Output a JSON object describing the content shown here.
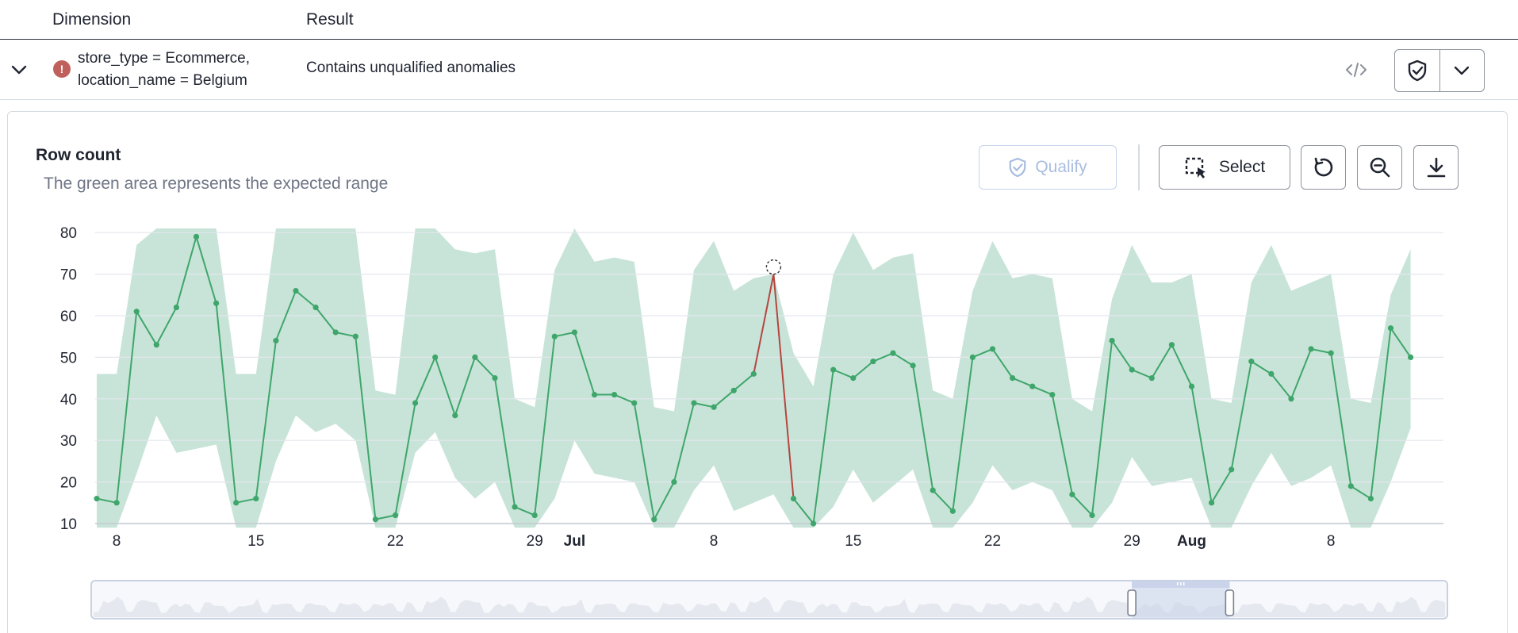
{
  "table": {
    "columns": {
      "dimension": "Dimension",
      "result": "Result"
    },
    "row": {
      "dimension_line1": "store_type = Ecommerce,",
      "dimension_line2": "location_name = Belgium",
      "result": "Contains unqualified anomalies",
      "status_icon": "error-icon"
    }
  },
  "panel": {
    "title": "Row count",
    "subtitle": "The green area represents the expected range",
    "qualify_label": "Qualify",
    "select_label": "Select"
  },
  "colors": {
    "band": "#c8e4d8",
    "line": "#3fa66b",
    "anomaly": "#b5453f",
    "brush_selection": "#c9d3ea"
  },
  "chart_data": {
    "type": "line",
    "title": "Row count",
    "ylim": [
      10,
      80
    ],
    "y_ticks": [
      10,
      20,
      30,
      40,
      50,
      60,
      70,
      80
    ],
    "x_start_date": "2024-06-07",
    "x_tick_labels": [
      {
        "label": "8",
        "day": 1,
        "bold": false
      },
      {
        "label": "15",
        "day": 8,
        "bold": false
      },
      {
        "label": "22",
        "day": 15,
        "bold": false
      },
      {
        "label": "29",
        "day": 22,
        "bold": false
      },
      {
        "label": "Jul",
        "day": 24,
        "bold": true
      },
      {
        "label": "8",
        "day": 31,
        "bold": false
      },
      {
        "label": "15",
        "day": 38,
        "bold": false
      },
      {
        "label": "22",
        "day": 45,
        "bold": false
      },
      {
        "label": "29",
        "day": 52,
        "bold": false
      },
      {
        "label": "Aug",
        "day": 55,
        "bold": true
      },
      {
        "label": "8",
        "day": 62,
        "bold": false
      }
    ],
    "series": [
      {
        "values": [
          16,
          15,
          61,
          53,
          62,
          79,
          63,
          15,
          16,
          54,
          66,
          62,
          56,
          55,
          11,
          12,
          39,
          50,
          36,
          50,
          45,
          14,
          12,
          55,
          56,
          41,
          41,
          39,
          11,
          20,
          39,
          38,
          42,
          46,
          70,
          16,
          10,
          47,
          45,
          49,
          51,
          48,
          18,
          13,
          50,
          52,
          45,
          43,
          41,
          17,
          12,
          54,
          47,
          45,
          53,
          43,
          15,
          23,
          49,
          46,
          40,
          52,
          51,
          19,
          16,
          57,
          50
        ]
      }
    ],
    "expected_range": {
      "upper": [
        46,
        46,
        77,
        81,
        81,
        81,
        81,
        46,
        46,
        81,
        81,
        81,
        81,
        81,
        42,
        41,
        81,
        81,
        76,
        75,
        76,
        40,
        38,
        71,
        81,
        73,
        74,
        73,
        38,
        37,
        71,
        78,
        66,
        69,
        70,
        51,
        43,
        70,
        80,
        71,
        74,
        75,
        42,
        40,
        66,
        78,
        69,
        70,
        69,
        40,
        37,
        64,
        77,
        68,
        68,
        70,
        40,
        39,
        68,
        77,
        66,
        68,
        70,
        40,
        39,
        65,
        76
      ],
      "lower": [
        9,
        9,
        22,
        36,
        27,
        28,
        29,
        9,
        9,
        25,
        36,
        32,
        34,
        30,
        9,
        9,
        27,
        32,
        21,
        16,
        20,
        9,
        9,
        16,
        30,
        22,
        21,
        20,
        9,
        9,
        18,
        24,
        13,
        15,
        17,
        9,
        9,
        14,
        23,
        15,
        19,
        23,
        9,
        9,
        15,
        24,
        18,
        20,
        18,
        9,
        9,
        15,
        26,
        19,
        20,
        21,
        9,
        9,
        19,
        27,
        19,
        21,
        24,
        9,
        9,
        20,
        33
      ]
    },
    "anomaly_index": 34,
    "grid": true
  },
  "overview": {
    "selection_start_fraction": 0.767,
    "selection_end_fraction": 0.839
  }
}
